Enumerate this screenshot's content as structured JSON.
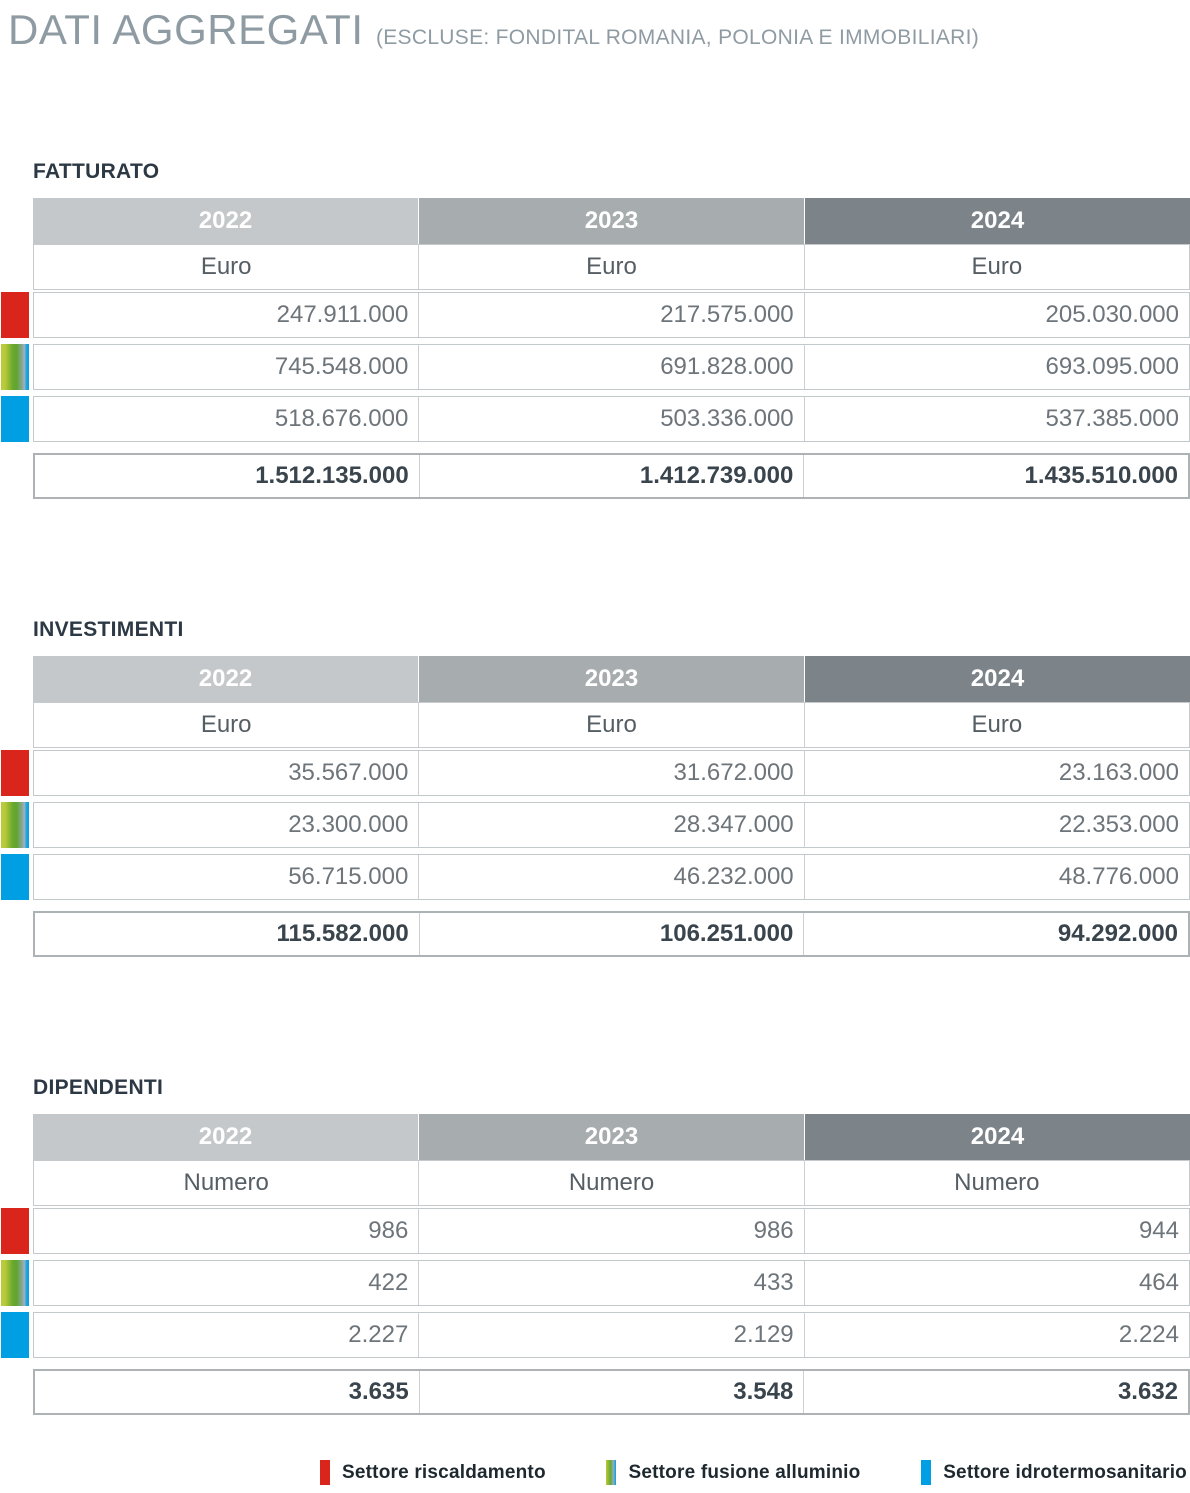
{
  "page": {
    "title": "DATI AGGREGATI",
    "subtitle": "(ESCLUSE: FONDITAL ROMANIA, POLONIA E IMMOBILIARI)"
  },
  "years": [
    "2022",
    "2023",
    "2024"
  ],
  "colors": {
    "sector_riscaldamento": "#da251d",
    "sector_fusione_alluminio_gradient": [
      "#b9ca3a",
      "#5fa52e",
      "#009fe3"
    ],
    "sector_idrotermosanitario": "#009fe3",
    "header_2022": "#c4c8ca",
    "header_2023": "#a7acaf",
    "header_2024": "#7d8489"
  },
  "tables": [
    {
      "title": "FATTURATO",
      "unit": "Euro",
      "rows": [
        {
          "sector": "riscaldamento",
          "values": [
            "247.911.000",
            "217.575.000",
            "205.030.000"
          ]
        },
        {
          "sector": "fusione-alluminio",
          "values": [
            "745.548.000",
            "691.828.000",
            "693.095.000"
          ]
        },
        {
          "sector": "idrotermosanitario",
          "values": [
            "518.676.000",
            "503.336.000",
            "537.385.000"
          ]
        }
      ],
      "total": [
        "1.512.135.000",
        "1.412.739.000",
        "1.435.510.000"
      ]
    },
    {
      "title": "INVESTIMENTI",
      "unit": "Euro",
      "rows": [
        {
          "sector": "riscaldamento",
          "values": [
            "35.567.000",
            "31.672.000",
            "23.163.000"
          ]
        },
        {
          "sector": "fusione-alluminio",
          "values": [
            "23.300.000",
            "28.347.000",
            "22.353.000"
          ]
        },
        {
          "sector": "idrotermosanitario",
          "values": [
            "56.715.000",
            "46.232.000",
            "48.776.000"
          ]
        }
      ],
      "total": [
        "115.582.000",
        "106.251.000",
        "94.292.000"
      ]
    },
    {
      "title": "DIPENDENTI",
      "unit": "Numero",
      "rows": [
        {
          "sector": "riscaldamento",
          "values": [
            "986",
            "986",
            "944"
          ]
        },
        {
          "sector": "fusione-alluminio",
          "values": [
            "422",
            "433",
            "464"
          ]
        },
        {
          "sector": "idrotermosanitario",
          "values": [
            "2.227",
            "2.129",
            "2.224"
          ]
        }
      ],
      "total": [
        "3.635",
        "3.548",
        "3.632"
      ]
    }
  ],
  "legend": [
    {
      "label": "Settore riscaldamento"
    },
    {
      "label": "Settore fusione alluminio"
    },
    {
      "label": "Settore idrotermosanitario"
    }
  ]
}
